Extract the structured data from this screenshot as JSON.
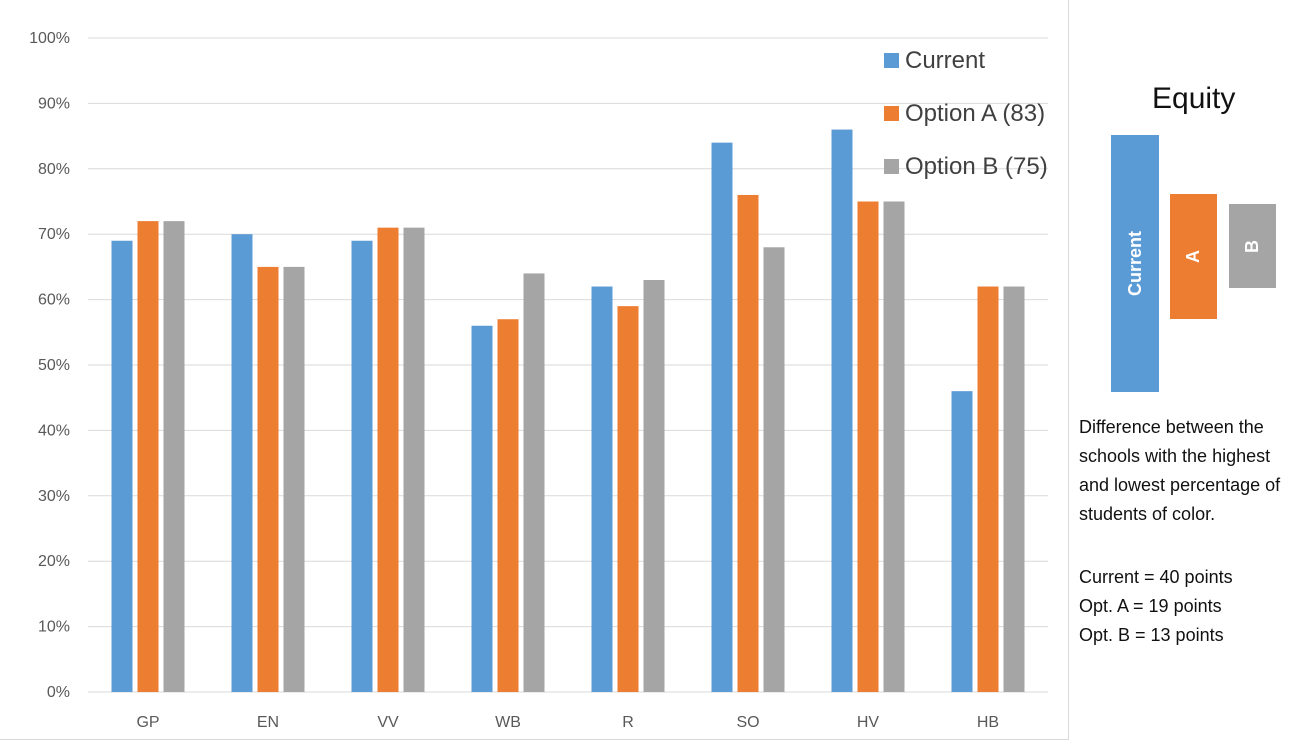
{
  "colors": {
    "current": "#5b9bd5",
    "option_a": "#ed7d31",
    "option_b": "#a5a5a5",
    "grid": "#d9d9d9"
  },
  "chart_data": {
    "type": "bar",
    "categories": [
      "GP",
      "EN",
      "VV",
      "WB",
      "R",
      "SO",
      "HV",
      "HB"
    ],
    "series": [
      {
        "name": "Current",
        "values": [
          69,
          70,
          69,
          56,
          62,
          84,
          86,
          46
        ]
      },
      {
        "name": "Option A (83)",
        "values": [
          72,
          65,
          71,
          57,
          59,
          76,
          75,
          62
        ]
      },
      {
        "name": "Option B (75)",
        "values": [
          72,
          65,
          71,
          64,
          63,
          68,
          75,
          62
        ]
      }
    ],
    "ylim": [
      0,
      100
    ],
    "y_ticks": [
      "0%",
      "10%",
      "20%",
      "30%",
      "40%",
      "50%",
      "60%",
      "70%",
      "80%",
      "90%",
      "100%"
    ],
    "grid": true,
    "legend_position": "top-right"
  },
  "side_panel": {
    "title": "Equity",
    "bars": [
      {
        "label": "Current",
        "points": 40
      },
      {
        "label": "A",
        "points": 19
      },
      {
        "label": "B",
        "points": 13
      }
    ],
    "description": "Difference between the schools with the highest and lowest percentage of students of color.",
    "points_lines": [
      "Current = 40 points",
      "Opt. A = 19 points",
      "Opt. B = 13 points"
    ]
  }
}
